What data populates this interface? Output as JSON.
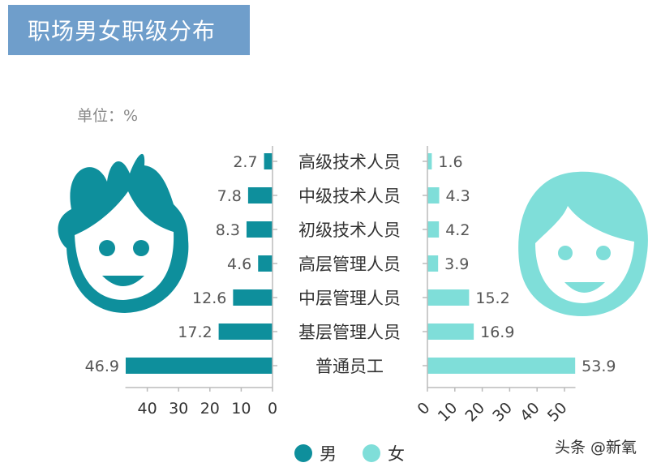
{
  "header": {
    "title": "职场男女职级分布"
  },
  "unit_label": "单位：%",
  "watermark": "头条 @新氧",
  "colors": {
    "male": "#0e8f9c",
    "female": "#7fded9",
    "title_bg": "#6f9ecb",
    "axis": "#bbbbbb"
  },
  "icons": {
    "male": "boy-face-icon",
    "female": "girl-face-icon"
  },
  "chart_data": {
    "type": "bar",
    "orientation": "horizontal-butterfly",
    "categories": [
      "高级技术人员",
      "中级技术人员",
      "初级技术人员",
      "高层管理人员",
      "中层管理人员",
      "基层管理人员",
      "普通员工"
    ],
    "series": [
      {
        "name": "男",
        "values": [
          2.7,
          7.8,
          8.3,
          4.6,
          12.6,
          17.2,
          46.9
        ],
        "axis_ticks": [
          "40",
          "30",
          "20",
          "10",
          "0"
        ],
        "xlim": [
          0,
          47
        ]
      },
      {
        "name": "女",
        "values": [
          1.6,
          4.3,
          4.2,
          3.9,
          15.2,
          16.9,
          53.9
        ],
        "axis_ticks": [
          "0",
          "10",
          "20",
          "30",
          "40",
          "50"
        ],
        "xlim": [
          0,
          54
        ]
      }
    ],
    "legend": {
      "position": "bottom"
    },
    "grid": false
  }
}
